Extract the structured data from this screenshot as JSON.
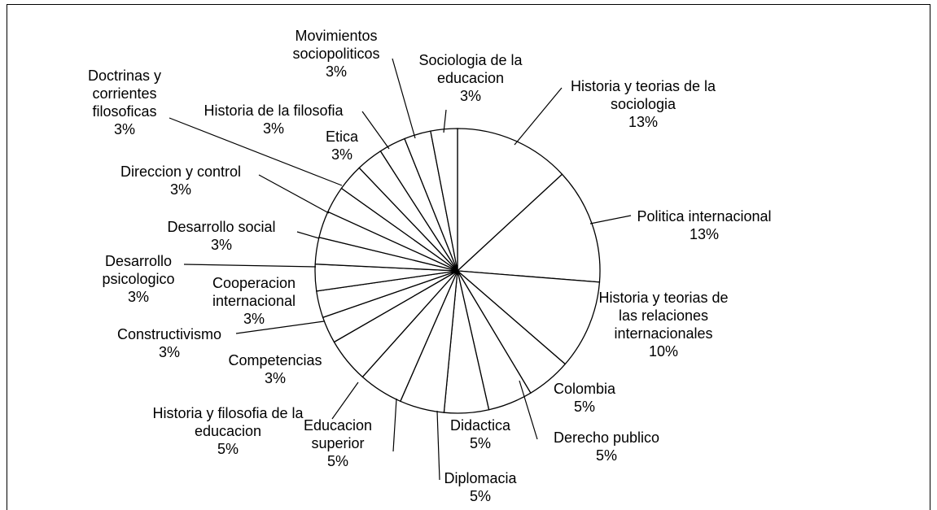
{
  "chart_data": {
    "type": "pie",
    "categories": [
      "Historia y teorias de la sociologia",
      "Politica internacional",
      "Historia y teorias de las relaciones internacionales",
      "Colombia",
      "Derecho publico",
      "Didactica",
      "Diplomacia",
      "Educacion superior",
      "Historia y filosofia de la educacion",
      "Competencias",
      "Constructivismo",
      "Cooperacion internacional",
      "Desarrollo psicologico",
      "Desarrollo social",
      "Direccion y control",
      "Doctrinas y corrientes filosoficas",
      "Etica",
      "Historia de la filosofia",
      "Movimientos sociopoliticos",
      "Sociologia de la educacion"
    ],
    "values": [
      13,
      13,
      10,
      5,
      5,
      5,
      5,
      5,
      5,
      3,
      3,
      3,
      3,
      3,
      3,
      3,
      3,
      3,
      3,
      3
    ],
    "value_labels": [
      "13%",
      "13%",
      "10%",
      "5%",
      "5%",
      "5%",
      "5%",
      "5%",
      "5%",
      "3%",
      "3%",
      "3%",
      "3%",
      "3%",
      "3%",
      "3%",
      "3%",
      "3%",
      "3%",
      "3%"
    ],
    "color": "#ffffff",
    "edge_color": "#000000"
  }
}
